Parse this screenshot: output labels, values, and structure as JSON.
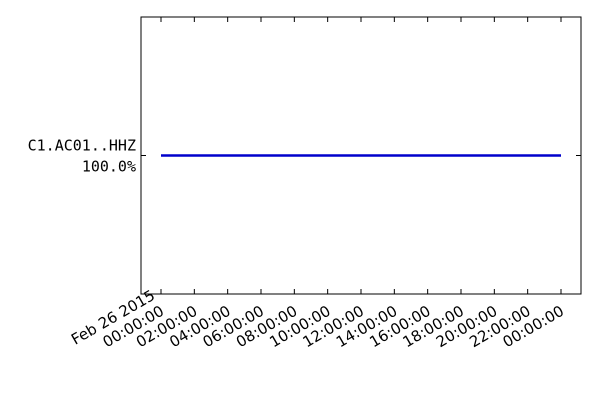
{
  "chart_data": {
    "type": "line",
    "title": "",
    "xlabel": "",
    "ylabel": "",
    "y_categories": [
      {
        "station": "C1.AC01..HHZ",
        "coverage": "100.0%"
      }
    ],
    "x_ticks": [
      [
        "Feb 26 2015",
        "00:00:00"
      ],
      [
        "02:00:00"
      ],
      [
        "04:00:00"
      ],
      [
        "06:00:00"
      ],
      [
        "08:00:00"
      ],
      [
        "10:00:00"
      ],
      [
        "12:00:00"
      ],
      [
        "14:00:00"
      ],
      [
        "16:00:00"
      ],
      [
        "18:00:00"
      ],
      [
        "20:00:00"
      ],
      [
        "22:00:00"
      ],
      [
        "00:00:00"
      ]
    ],
    "x_tick_hours": [
      0,
      2,
      4,
      6,
      8,
      10,
      12,
      14,
      16,
      18,
      20,
      22,
      24
    ],
    "xlim_hours": [
      -1.2,
      25.2
    ],
    "series": [
      {
        "start_hour": 0,
        "end_hour": 24,
        "row": 0
      }
    ],
    "colors": {
      "trace": "#0000cc",
      "axes": "#000000",
      "background": "#ffffff"
    },
    "grid": false,
    "tick_label_rotation": "30-degree"
  }
}
